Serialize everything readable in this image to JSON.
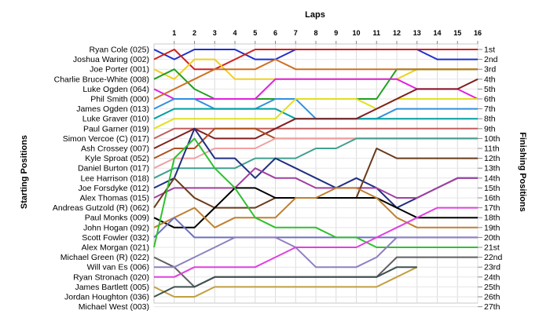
{
  "chart_data": {
    "type": "line",
    "title": "",
    "xlabel": "Laps",
    "ylabel": "Starting Positions",
    "y2label": "Finishing Positions",
    "x": [
      0,
      1,
      2,
      3,
      4,
      5,
      6,
      7,
      8,
      9,
      10,
      11,
      12,
      13,
      14,
      15,
      16
    ],
    "x_tick_labels": [
      "1",
      "2",
      "3",
      "4",
      "5",
      "6",
      "7",
      "8",
      "9",
      "10",
      "11",
      "12",
      "13",
      "14",
      "15",
      "16"
    ],
    "starting_positions": [
      "Ryan Cole (025)",
      "Joshua Waring (002)",
      "Joe Porter (001)",
      "Charlie Bruce-White (008)",
      "Luke Ogden (064)",
      "Phil Smith (000)",
      "James Ogden (013)",
      "Luke Graver (010)",
      "Paul Garner (019)",
      "Simon Vercoe  (C) (017)",
      "Ash Crossey (007)",
      "Kyle Sproat (052)",
      "Daniel Burton (017)",
      "Lee Harrison (018)",
      "Joe Forsdyke (012)",
      "Alex Thomas (015)",
      "Andreas Gutzold (R) (062)",
      "Paul Monks (009)",
      "John Hogan (092)",
      "Scott Fowler (032)",
      "Alex Morgan (021)",
      "Michael Green (R) (022)",
      "Will van Es (006)",
      "Ryan Stronach (020)",
      "James Bartlett (005)",
      "Jordan Houghton (036)",
      "Michael West (003)"
    ],
    "finishing_positions": [
      "1st",
      "2nd",
      "3rd",
      "4th",
      "5th",
      "6th",
      "7th",
      "8th",
      "9th",
      "10th",
      "11th",
      "12th",
      "13th",
      "14th",
      "15th",
      "16th",
      "17th",
      "18th",
      "19th",
      "20th",
      "21st",
      "22nd",
      "23rd",
      "24th",
      "25th",
      "26th",
      "27th"
    ],
    "y_range": [
      1,
      27
    ],
    "grid": true,
    "series": [
      {
        "name": "Ryan Cole (025)",
        "color": "#1f2fd0",
        "values": [
          1,
          2,
          1,
          1,
          1,
          2,
          2,
          1,
          1,
          1,
          1,
          1,
          1,
          1,
          2,
          2,
          2
        ]
      },
      {
        "name": "Joshua Waring (002)",
        "color": "#d02020",
        "values": [
          2,
          1,
          3,
          3,
          2,
          1,
          1,
          1,
          1,
          1,
          1,
          1,
          1,
          1,
          1,
          1,
          1
        ]
      },
      {
        "name": "Joe Porter (001)",
        "color": "#f0d020",
        "values": [
          3,
          4,
          2,
          2,
          4,
          4,
          4,
          4,
          4,
          4,
          4,
          4,
          4,
          3,
          3,
          3,
          3
        ]
      },
      {
        "name": "Charlie Bruce-White (008)",
        "color": "#20a020",
        "values": [
          4,
          3,
          5,
          6,
          6,
          6,
          6,
          6,
          6,
          6,
          6,
          6,
          3,
          3,
          3,
          3,
          3
        ]
      },
      {
        "name": "Luke Ogden (064)",
        "color": "#e020e0",
        "values": [
          5,
          6,
          6,
          6,
          6,
          6,
          4,
          4,
          4,
          4,
          4,
          4,
          4,
          5,
          5,
          5,
          6
        ]
      },
      {
        "name": "Phil Smith (000)",
        "color": "#d07020",
        "values": [
          6,
          5,
          4,
          3,
          3,
          3,
          2,
          3,
          3,
          3,
          3,
          3,
          3,
          3,
          3,
          3,
          3
        ]
      },
      {
        "name": "James Ogden (013)",
        "color": "#3090e0",
        "values": [
          7,
          6,
          6,
          7,
          7,
          7,
          6,
          6,
          8,
          8,
          8,
          8,
          7,
          7,
          7,
          7,
          7
        ]
      },
      {
        "name": "Luke Graver (010)",
        "color": "#00a0a0",
        "values": [
          8,
          7,
          7,
          7,
          7,
          7,
          7,
          8,
          8,
          8,
          8,
          8,
          8,
          8,
          8,
          8,
          8
        ]
      },
      {
        "name": "Paul Garner (019)",
        "color": "#e0e020",
        "values": [
          9,
          8,
          8,
          8,
          8,
          8,
          8,
          6,
          6,
          6,
          6,
          7,
          6,
          6,
          6,
          6,
          6
        ]
      },
      {
        "name": "Simon Vercoe  (C) (017)",
        "color": "#c06060",
        "values": [
          10,
          9,
          9,
          9,
          9,
          9,
          9,
          9,
          9,
          9,
          9,
          9,
          9,
          9,
          9,
          9,
          9
        ]
      },
      {
        "name": "Ash Crossey (007)",
        "color": "#802020",
        "values": [
          11,
          10,
          9,
          10,
          10,
          10,
          9,
          8,
          8,
          8,
          8,
          7,
          6,
          5,
          5,
          5,
          4
        ]
      },
      {
        "name": "Kyle Sproat (052)",
        "color": "#b05020",
        "values": [
          12,
          11,
          11,
          9,
          9,
          9,
          10,
          10,
          10,
          10,
          10,
          10,
          10,
          10,
          10,
          10,
          10
        ]
      },
      {
        "name": "Daniel Burton (017)",
        "color": "#f0a0a0",
        "values": [
          13,
          12,
          12,
          11,
          11,
          11,
          10,
          10,
          10,
          10,
          10,
          10,
          10,
          10,
          10,
          10,
          10
        ]
      },
      {
        "name": "Lee Harrison (018)",
        "color": "#40a090",
        "values": [
          14,
          13,
          13,
          13,
          13,
          12,
          12,
          12,
          11,
          11,
          10,
          10,
          10,
          10,
          10,
          10,
          10
        ]
      },
      {
        "name": "Joe Forsdyke (012)",
        "color": "#203080",
        "values": [
          15,
          14,
          9,
          12,
          12,
          14,
          12,
          13,
          14,
          15,
          14,
          15,
          17,
          16,
          15,
          14,
          14
        ]
      },
      {
        "name": "Alex Thomas (015)",
        "color": "#a040a0",
        "values": [
          16,
          15,
          15,
          15,
          15,
          13,
          14,
          14,
          15,
          15,
          15,
          15,
          16,
          16,
          15,
          14,
          14
        ]
      },
      {
        "name": "Andreas Gutzold (R) (062)",
        "color": "#6a3a1a",
        "values": [
          17,
          14,
          16,
          17,
          17,
          17,
          16,
          16,
          16,
          16,
          16,
          11,
          12,
          12,
          12,
          12,
          12
        ]
      },
      {
        "name": "Paul Monks (009)",
        "color": "#000000",
        "values": [
          18,
          19,
          19,
          17,
          15,
          15,
          16,
          16,
          16,
          16,
          16,
          16,
          17,
          18,
          18,
          18,
          18
        ]
      },
      {
        "name": "John Hogan (092)",
        "color": "#c08030",
        "values": [
          19,
          18,
          17,
          19,
          18,
          18,
          18,
          16,
          16,
          15,
          15,
          16,
          18,
          19,
          19,
          19,
          19
        ]
      },
      {
        "name": "Scott Fowler (032)",
        "color": "#7070c0",
        "values": [
          20,
          18,
          20,
          20,
          20,
          20,
          20,
          20,
          20,
          20,
          20,
          20,
          20,
          20,
          20,
          20,
          20
        ]
      },
      {
        "name": "Alex Morgan (021)",
        "color": "#30c030",
        "values": [
          21,
          12,
          10,
          13,
          15,
          18,
          19,
          19,
          19,
          20,
          20,
          21,
          21,
          21,
          21,
          21,
          21
        ]
      },
      {
        "name": "Michael Green (R) (022)",
        "color": "#606060",
        "values": [
          22,
          23,
          25,
          24,
          24,
          24,
          24,
          24,
          24,
          24,
          24,
          24,
          22,
          22,
          22,
          22,
          22
        ]
      },
      {
        "name": "Will van Es (006)",
        "color": "#9080c0",
        "values": [
          23,
          23,
          22,
          21,
          20,
          20,
          20,
          21,
          23,
          23,
          23,
          22,
          20,
          20,
          20,
          20,
          20
        ]
      },
      {
        "name": "Ryan Stronach (020)",
        "color": "#e040e0",
        "values": [
          24,
          24,
          23,
          23,
          23,
          23,
          22,
          21,
          21,
          21,
          21,
          20,
          19,
          18,
          17,
          17,
          17
        ]
      },
      {
        "name": "James Bartlett (005)",
        "color": "#c0a040",
        "values": [
          25,
          26,
          26,
          25,
          25,
          25,
          25,
          25,
          25,
          25,
          25,
          25,
          24,
          23,
          null,
          null,
          null
        ]
      },
      {
        "name": "Jordan Houghton (036)",
        "color": "#405050",
        "values": [
          26,
          25,
          25,
          24,
          24,
          24,
          24,
          24,
          24,
          24,
          24,
          24,
          23,
          23,
          null,
          null,
          null
        ]
      },
      {
        "name": "Michael West (003)",
        "color": "#909090",
        "values": [
          27,
          null,
          null,
          null,
          null,
          null,
          null,
          null,
          null,
          null,
          null,
          null,
          null,
          null,
          null,
          null,
          null
        ]
      }
    ]
  }
}
